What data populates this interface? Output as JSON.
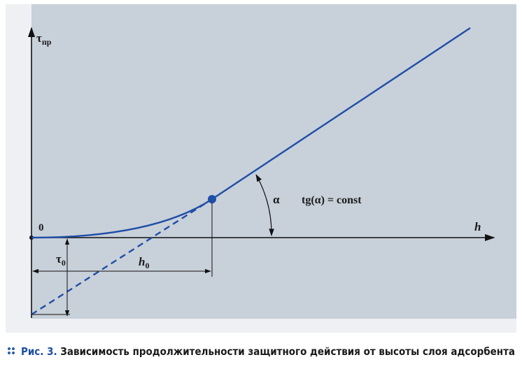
{
  "axes": {
    "y_label": "τ",
    "y_label_sub": "пр",
    "origin": "0",
    "x_label": "h"
  },
  "annotations": {
    "angle": "α",
    "formula": "tg(α) = const",
    "tau0": "τ",
    "tau0_sub": "0",
    "h0": "h",
    "h0_sub": "0"
  },
  "caption": {
    "number": "Рис. 3.",
    "text": "Зависимость продолжительности защитного действия от высоты слоя адсорбента"
  }
}
